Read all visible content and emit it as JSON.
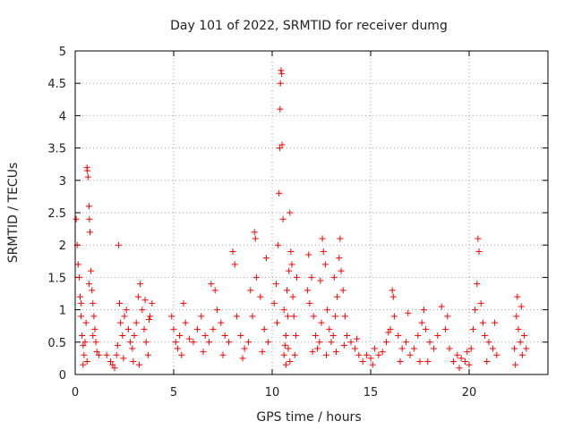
{
  "chart_data": {
    "type": "scatter",
    "title": "Day 101 of 2022, SRMTID for receiver dumg",
    "xlabel": "GPS time / hours",
    "ylabel": "SRMTID / TECUs",
    "xlim": [
      0,
      24
    ],
    "ylim": [
      0,
      5
    ],
    "grid": true,
    "x_ticks": [
      0,
      5,
      10,
      15,
      20
    ],
    "y_ticks": [
      0,
      0.5,
      1,
      1.5,
      2,
      2.5,
      3,
      3.5,
      4,
      4.5,
      5
    ],
    "marker": "+",
    "marker_color": "#ff0000",
    "series": [
      {
        "name": "SRMTID",
        "points": [
          [
            0.05,
            2.4
          ],
          [
            0.1,
            2.0
          ],
          [
            0.15,
            1.7
          ],
          [
            0.2,
            1.5
          ],
          [
            0.25,
            1.2
          ],
          [
            0.3,
            0.9
          ],
          [
            0.35,
            0.6
          ],
          [
            0.4,
            0.45
          ],
          [
            0.45,
            0.3
          ],
          [
            0.5,
            0.5
          ],
          [
            0.55,
            0.8
          ],
          [
            0.6,
            3.2
          ],
          [
            0.62,
            3.15
          ],
          [
            0.65,
            3.05
          ],
          [
            0.7,
            2.6
          ],
          [
            0.72,
            2.4
          ],
          [
            0.75,
            2.2
          ],
          [
            0.8,
            1.6
          ],
          [
            0.85,
            1.3
          ],
          [
            0.9,
            1.1
          ],
          [
            0.95,
            0.9
          ],
          [
            1.0,
            0.7
          ],
          [
            1.05,
            0.5
          ],
          [
            1.1,
            0.35
          ],
          [
            1.2,
            0.3
          ],
          [
            0.6,
            0.2
          ],
          [
            0.4,
            0.15
          ],
          [
            0.3,
            1.1
          ],
          [
            0.7,
            1.4
          ],
          [
            0.9,
            0.6
          ],
          [
            1.6,
            0.3
          ],
          [
            1.8,
            0.2
          ],
          [
            1.9,
            0.15
          ],
          [
            2.0,
            0.1
          ],
          [
            2.1,
            0.3
          ],
          [
            2.2,
            2.0
          ],
          [
            2.25,
            1.1
          ],
          [
            2.3,
            0.8
          ],
          [
            2.4,
            0.6
          ],
          [
            2.5,
            0.9
          ],
          [
            2.6,
            1.0
          ],
          [
            2.7,
            0.7
          ],
          [
            2.8,
            0.5
          ],
          [
            2.9,
            0.4
          ],
          [
            3.0,
            0.6
          ],
          [
            3.1,
            0.8
          ],
          [
            3.2,
            1.2
          ],
          [
            3.3,
            1.4
          ],
          [
            3.4,
            1.0
          ],
          [
            3.5,
            0.7
          ],
          [
            3.6,
            0.5
          ],
          [
            3.7,
            0.3
          ],
          [
            3.8,
            0.9
          ],
          [
            3.9,
            1.1
          ],
          [
            2.45,
            0.25
          ],
          [
            2.95,
            0.2
          ],
          [
            3.25,
            0.15
          ],
          [
            3.55,
            1.15
          ],
          [
            2.15,
            0.45
          ],
          [
            3.75,
            0.85
          ],
          [
            4.9,
            0.9
          ],
          [
            5.0,
            0.7
          ],
          [
            5.1,
            0.5
          ],
          [
            5.2,
            0.4
          ],
          [
            5.3,
            0.6
          ],
          [
            5.5,
            1.1
          ],
          [
            5.6,
            0.8
          ],
          [
            5.8,
            0.55
          ],
          [
            6.0,
            0.5
          ],
          [
            6.2,
            0.7
          ],
          [
            6.4,
            0.9
          ],
          [
            6.6,
            0.6
          ],
          [
            6.8,
            0.5
          ],
          [
            7.0,
            0.7
          ],
          [
            7.1,
            1.3
          ],
          [
            7.2,
            1.0
          ],
          [
            7.4,
            0.8
          ],
          [
            7.6,
            0.6
          ],
          [
            7.8,
            0.5
          ],
          [
            8.0,
            1.9
          ],
          [
            8.1,
            1.7
          ],
          [
            8.2,
            0.9
          ],
          [
            8.4,
            0.6
          ],
          [
            8.6,
            0.4
          ],
          [
            8.8,
            0.5
          ],
          [
            9.0,
            0.9
          ],
          [
            9.1,
            2.2
          ],
          [
            9.15,
            2.1
          ],
          [
            9.2,
            1.5
          ],
          [
            9.4,
            1.2
          ],
          [
            9.6,
            0.7
          ],
          [
            9.8,
            0.5
          ],
          [
            5.4,
            0.3
          ],
          [
            6.5,
            0.35
          ],
          [
            7.5,
            0.3
          ],
          [
            8.5,
            0.25
          ],
          [
            9.5,
            0.35
          ],
          [
            6.9,
            1.4
          ],
          [
            8.9,
            1.3
          ],
          [
            9.7,
            1.8
          ],
          [
            10.1,
            1.1
          ],
          [
            10.2,
            1.4
          ],
          [
            10.3,
            2.0
          ],
          [
            10.35,
            2.8
          ],
          [
            10.38,
            3.5
          ],
          [
            10.4,
            4.1
          ],
          [
            10.42,
            4.5
          ],
          [
            10.45,
            4.7
          ],
          [
            10.48,
            4.65
          ],
          [
            10.5,
            3.55
          ],
          [
            10.55,
            2.4
          ],
          [
            10.6,
            1.0
          ],
          [
            10.7,
            0.6
          ],
          [
            10.8,
            0.9
          ],
          [
            10.85,
            1.6
          ],
          [
            10.9,
            2.5
          ],
          [
            10.95,
            1.9
          ],
          [
            11.0,
            1.7
          ],
          [
            11.1,
            0.9
          ],
          [
            11.2,
            0.6
          ],
          [
            10.6,
            0.3
          ],
          [
            10.7,
            0.15
          ],
          [
            10.9,
            0.2
          ],
          [
            11.15,
            0.3
          ],
          [
            10.25,
            0.8
          ],
          [
            10.75,
            1.3
          ],
          [
            11.05,
            1.2
          ],
          [
            10.65,
            0.45
          ],
          [
            10.82,
            0.4
          ],
          [
            11.25,
            1.5
          ],
          [
            11.8,
            1.3
          ],
          [
            11.9,
            1.1
          ],
          [
            12.0,
            1.5
          ],
          [
            12.1,
            0.9
          ],
          [
            12.2,
            0.6
          ],
          [
            12.3,
            0.4
          ],
          [
            12.4,
            0.5
          ],
          [
            12.5,
            0.8
          ],
          [
            12.55,
            2.1
          ],
          [
            12.6,
            1.9
          ],
          [
            12.7,
            1.7
          ],
          [
            12.8,
            1.0
          ],
          [
            12.9,
            0.7
          ],
          [
            13.0,
            0.5
          ],
          [
            13.1,
            0.6
          ],
          [
            13.2,
            0.9
          ],
          [
            13.3,
            1.2
          ],
          [
            13.4,
            1.8
          ],
          [
            13.45,
            2.1
          ],
          [
            13.5,
            1.6
          ],
          [
            13.6,
            1.3
          ],
          [
            13.7,
            0.9
          ],
          [
            13.8,
            0.6
          ],
          [
            11.85,
            1.85
          ],
          [
            12.45,
            1.45
          ],
          [
            13.15,
            1.5
          ],
          [
            13.65,
            0.45
          ],
          [
            12.05,
            0.35
          ],
          [
            12.75,
            0.3
          ],
          [
            13.25,
            0.35
          ],
          [
            14.0,
            0.5
          ],
          [
            14.2,
            0.4
          ],
          [
            14.4,
            0.3
          ],
          [
            14.6,
            0.2
          ],
          [
            14.8,
            0.3
          ],
          [
            15.0,
            0.25
          ],
          [
            15.2,
            0.4
          ],
          [
            15.4,
            0.3
          ],
          [
            15.6,
            0.35
          ],
          [
            15.8,
            0.5
          ],
          [
            16.0,
            0.7
          ],
          [
            16.1,
            1.3
          ],
          [
            16.15,
            1.2
          ],
          [
            16.2,
            0.9
          ],
          [
            16.4,
            0.6
          ],
          [
            16.6,
            0.4
          ],
          [
            16.8,
            0.5
          ],
          [
            17.0,
            0.3
          ],
          [
            17.2,
            0.4
          ],
          [
            17.4,
            0.6
          ],
          [
            17.6,
            0.8
          ],
          [
            17.7,
            1.0
          ],
          [
            17.8,
            0.7
          ],
          [
            18.0,
            0.5
          ],
          [
            18.2,
            0.4
          ],
          [
            18.4,
            0.6
          ],
          [
            18.6,
            1.05
          ],
          [
            18.8,
            0.7
          ],
          [
            19.0,
            0.4
          ],
          [
            19.2,
            0.2
          ],
          [
            19.4,
            0.3
          ],
          [
            19.6,
            0.25
          ],
          [
            19.8,
            0.2
          ],
          [
            20.0,
            0.15
          ],
          [
            20.1,
            0.4
          ],
          [
            20.2,
            0.7
          ],
          [
            20.3,
            1.0
          ],
          [
            20.4,
            1.4
          ],
          [
            20.45,
            2.1
          ],
          [
            20.5,
            1.9
          ],
          [
            20.6,
            1.1
          ],
          [
            20.7,
            0.8
          ],
          [
            20.8,
            0.6
          ],
          [
            21.0,
            0.5
          ],
          [
            21.2,
            0.4
          ],
          [
            21.4,
            0.3
          ],
          [
            15.1,
            0.15
          ],
          [
            16.5,
            0.2
          ],
          [
            17.9,
            0.2
          ],
          [
            19.5,
            0.1
          ],
          [
            20.9,
            0.2
          ],
          [
            18.9,
            0.9
          ],
          [
            16.9,
            0.95
          ],
          [
            15.9,
            0.65
          ],
          [
            14.3,
            0.55
          ],
          [
            21.3,
            0.8
          ],
          [
            19.9,
            0.35
          ],
          [
            17.5,
            0.2
          ],
          [
            22.3,
            0.4
          ],
          [
            22.4,
            0.9
          ],
          [
            22.45,
            1.2
          ],
          [
            22.5,
            0.7
          ],
          [
            22.6,
            0.5
          ],
          [
            22.7,
            0.3
          ],
          [
            22.8,
            0.6
          ],
          [
            22.9,
            0.4
          ],
          [
            22.35,
            0.15
          ],
          [
            22.65,
            1.05
          ]
        ]
      }
    ]
  }
}
